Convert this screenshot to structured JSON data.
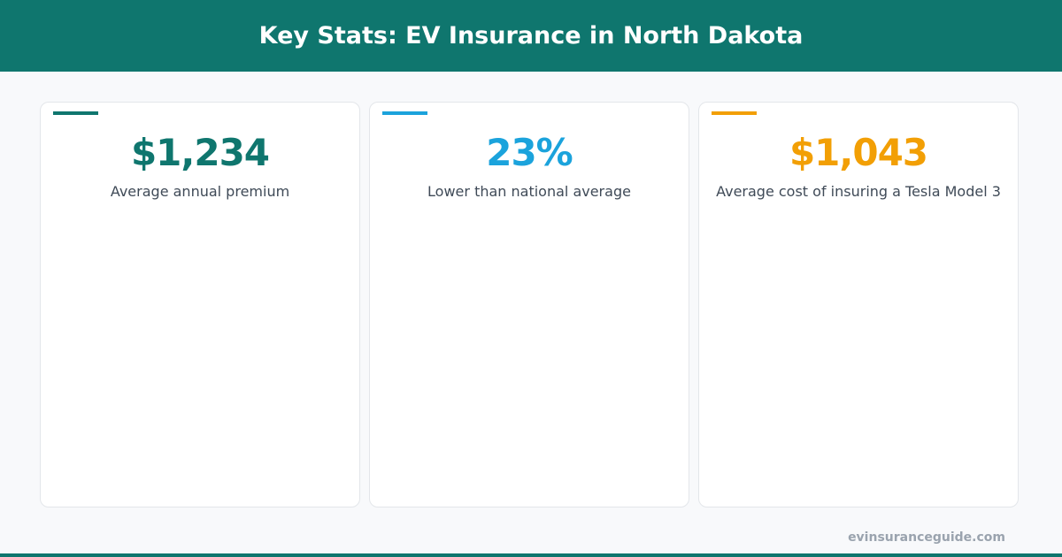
{
  "header": {
    "title": "Key Stats: EV Insurance in North Dakota"
  },
  "cards": [
    {
      "value": "$1,234",
      "label": "Average annual premium",
      "color": "#0f766e"
    },
    {
      "value": "23%",
      "label": "Lower than national average",
      "color": "#1ba3dc"
    },
    {
      "value": "$1,043",
      "label": "Average cost of insuring a Tesla Model 3",
      "color": "#f29f05"
    }
  ],
  "footer": {
    "site": "evinsuranceguide.com"
  }
}
